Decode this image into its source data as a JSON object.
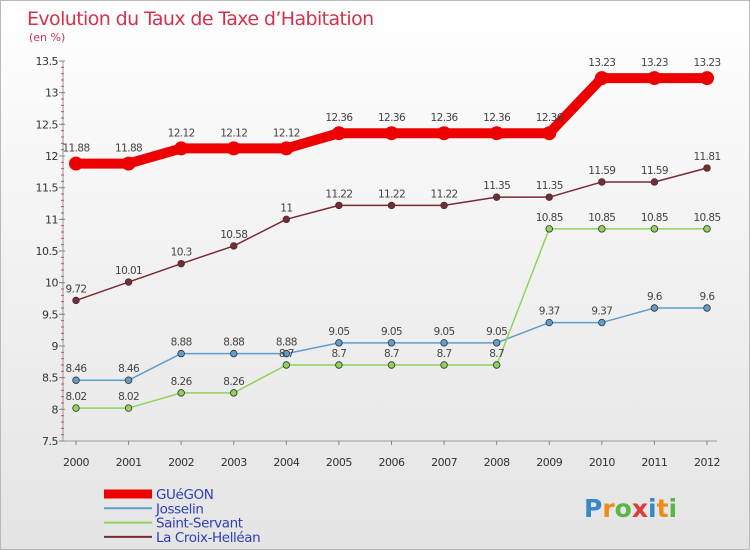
{
  "chart_data": {
    "type": "line",
    "title": "Evolution du Taux de Taxe d’Habitation",
    "subtitle": "(en %)",
    "x": [
      "2000",
      "2001",
      "2002",
      "2003",
      "2004",
      "2005",
      "2006",
      "2007",
      "2008",
      "2009",
      "2010",
      "2011",
      "2012"
    ],
    "ylim": [
      7.5,
      13.5
    ],
    "yticks": [
      "7.5",
      "8",
      "8.5",
      "9",
      "9.5",
      "10",
      "10.5",
      "11",
      "11.5",
      "12",
      "12.5",
      "13",
      "13.5"
    ],
    "grid": false,
    "legend_position": "bottom-left",
    "series": [
      {
        "name": "GUéGON",
        "color": "#ee0000",
        "emphasis": true,
        "values": [
          11.88,
          11.88,
          12.12,
          12.12,
          12.12,
          12.36,
          12.36,
          12.36,
          12.36,
          12.36,
          13.23,
          13.23,
          13.23
        ],
        "labels": [
          "11.88",
          "11.88",
          "12.12",
          "12.12",
          "12.12",
          "12.36",
          "12.36",
          "12.36",
          "12.36",
          "12.36",
          "13.23",
          "13.23",
          "13.23"
        ]
      },
      {
        "name": "Josselin",
        "color": "#5f9ecf",
        "emphasis": false,
        "values": [
          8.46,
          8.46,
          8.88,
          8.88,
          8.88,
          9.05,
          9.05,
          9.05,
          9.05,
          9.37,
          9.37,
          9.6,
          9.6
        ],
        "labels": [
          "8.46",
          "8.46",
          "8.88",
          "8.88",
          "8.88",
          "9.05",
          "9.05",
          "9.05",
          "9.05",
          "9.37",
          "9.37",
          "9.6",
          "9.6"
        ]
      },
      {
        "name": "Saint-Servant",
        "color": "#8fd35c",
        "emphasis": false,
        "values": [
          8.02,
          8.02,
          8.26,
          8.26,
          8.7,
          8.7,
          8.7,
          8.7,
          8.7,
          10.85,
          10.85,
          10.85,
          10.85
        ],
        "labels": [
          "8.02",
          "8.02",
          "8.26",
          "8.26",
          "8.7",
          "8.7",
          "8.7",
          "8.7",
          "8.7",
          "10.85",
          "10.85",
          "10.85",
          "10.85"
        ]
      },
      {
        "name": "La Croix-Helléan",
        "color": "#7a2a33",
        "emphasis": false,
        "values": [
          9.72,
          10.01,
          10.3,
          10.58,
          11.0,
          11.22,
          11.22,
          11.22,
          11.35,
          11.35,
          11.59,
          11.59,
          11.81
        ],
        "labels": [
          "9.72",
          "10.01",
          "10.3",
          "10.58",
          "11",
          "11.22",
          "11.22",
          "11.22",
          "11.35",
          "11.35",
          "11.59",
          "11.59",
          "11.81"
        ]
      }
    ]
  },
  "brand": {
    "letters": [
      "P",
      "r",
      "o",
      "x",
      "i",
      "t",
      "i"
    ],
    "colors": [
      "#3a86c8",
      "#f08a1c",
      "#57b847",
      "#e03a3a",
      "#3a86c8",
      "#f08a1c",
      "#57b847"
    ]
  }
}
